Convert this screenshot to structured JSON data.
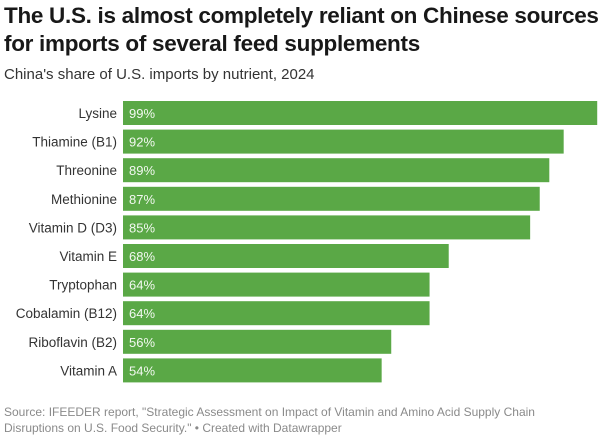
{
  "chart_data": {
    "type": "bar",
    "orientation": "horizontal",
    "title": "The U.S. is almost completely reliant on Chinese sources for imports of several feed supplements",
    "subtitle": "China's share of U.S. imports by nutrient, 2024",
    "xlabel": "",
    "ylabel": "",
    "unit": "%",
    "xlim": [
      0,
      100
    ],
    "grid": false,
    "bar_color": "#5aa846",
    "categories": [
      "Lysine",
      "Thiamine (B1)",
      "Threonine",
      "Methionine",
      "Vitamin D (D3)",
      "Vitamin E",
      "Tryptophan",
      "Cobalamin (B12)",
      "Riboflavin (B2)",
      "Vitamin A"
    ],
    "values": [
      99,
      92,
      89,
      87,
      85,
      68,
      64,
      64,
      56,
      54
    ],
    "value_labels": [
      "99%",
      "92%",
      "89%",
      "87%",
      "85%",
      "68%",
      "64%",
      "64%",
      "56%",
      "54%"
    ],
    "source": "Source: IFEEDER report, \"Strategic Assessment on Impact of Vitamin and Amino Acid Supply Chain Disruptions on U.S. Food Security.\" • Created with Datawrapper"
  }
}
